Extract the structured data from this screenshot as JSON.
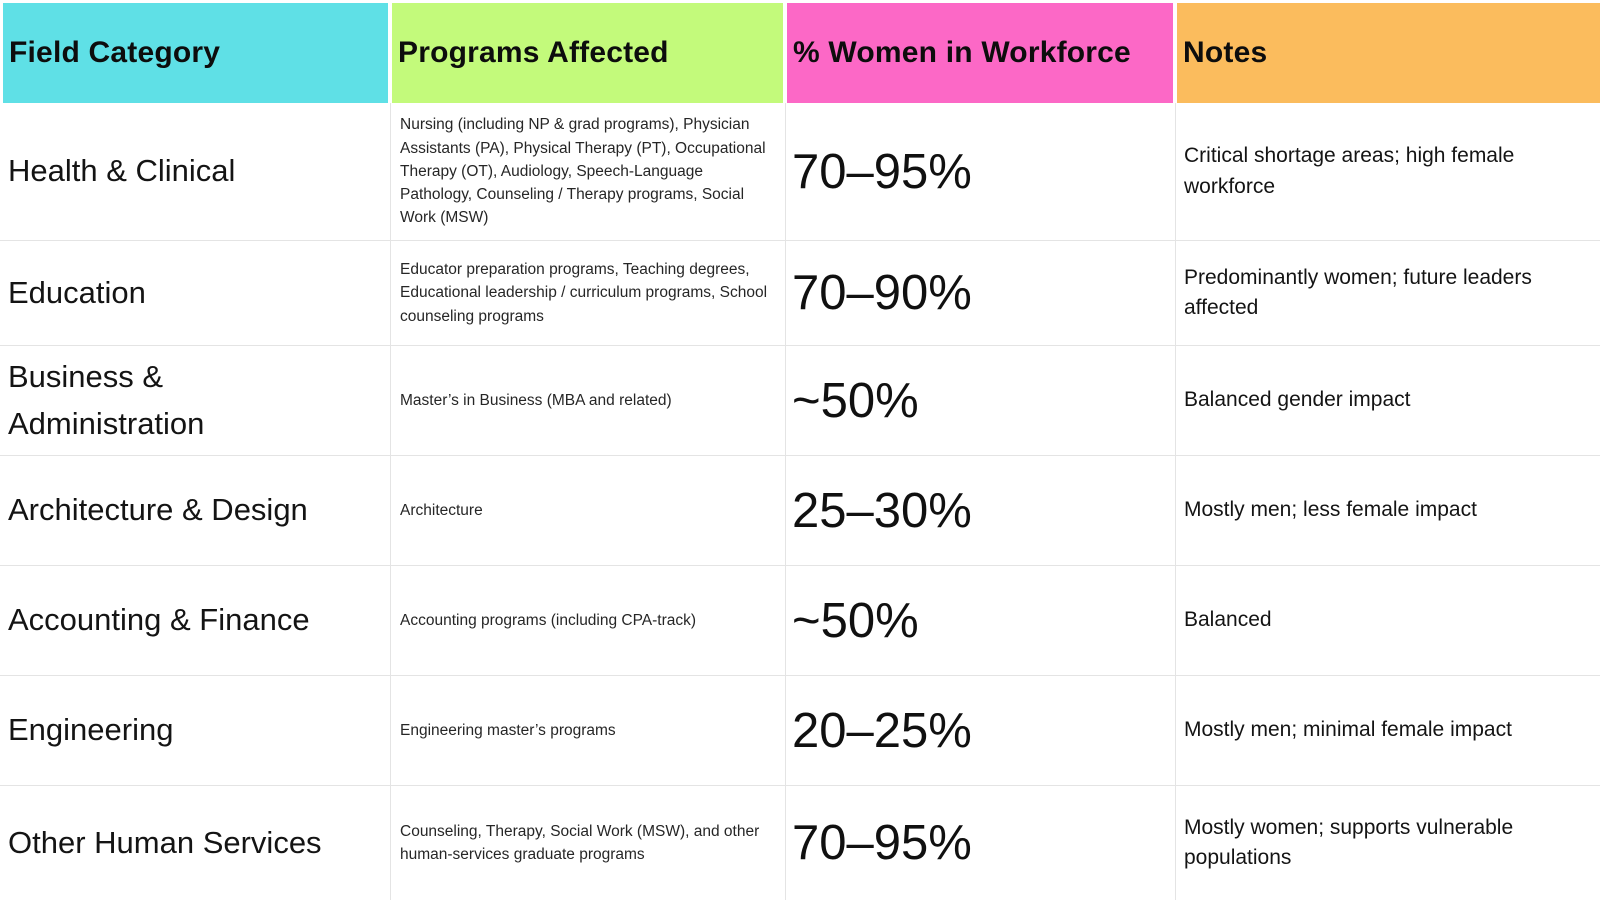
{
  "chart_data": {
    "type": "table",
    "columns": [
      "Field Category",
      "Programs Affected",
      "% Women in Workforce",
      "Notes"
    ],
    "header_colors": [
      "#5FE0E6",
      "#C3FA7B",
      "#FC68C6",
      "#FBBC5D"
    ],
    "rows": [
      {
        "field": "Health & Clinical",
        "programs": "Nursing (including NP & grad programs), Physician Assistants (PA), Physical Therapy (PT), Occupational Therapy (OT), Audiology, Speech-Language Pathology, Counseling / Therapy programs, Social Work (MSW)",
        "percent": "70–95%",
        "notes": "Critical shortage areas; high female workforce"
      },
      {
        "field": "Education",
        "programs": "Educator preparation programs, Teaching degrees, Educational leadership / curriculum programs, School counseling programs",
        "percent": "70–90%",
        "notes": "Predominantly women; future leaders affected"
      },
      {
        "field": "Business & Administration",
        "programs": "Master’s in Business (MBA and related)",
        "percent": "~50%",
        "notes": "Balanced gender impact"
      },
      {
        "field": "Architecture & Design",
        "programs": "Architecture",
        "percent": "25–30%",
        "notes": "Mostly men; less female impact"
      },
      {
        "field": "Accounting & Finance",
        "programs": "Accounting programs (including CPA-track)",
        "percent": "~50%",
        "notes": "Balanced"
      },
      {
        "field": "Engineering",
        "programs": "Engineering master’s programs",
        "percent": "20–25%",
        "notes": "Mostly men; minimal female impact"
      },
      {
        "field": "Other Human Services",
        "programs": "Counseling, Therapy, Social Work (MSW), and other human-services graduate programs",
        "percent": "70–95%",
        "notes": "Mostly women; supports vulnerable populations"
      }
    ]
  }
}
